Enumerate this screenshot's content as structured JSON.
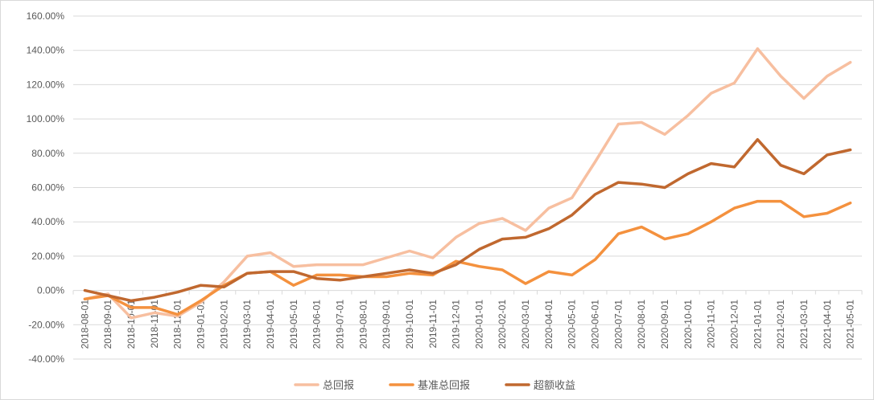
{
  "chart_data": {
    "type": "line",
    "title": "",
    "xlabel": "",
    "ylabel": "",
    "ylim": [
      -40,
      160
    ],
    "y_tick_step": 20,
    "y_tick_format": "percent_2dp",
    "grid": "horizontal",
    "legend_position": "bottom",
    "x": [
      "2018-08-01",
      "2018-09-01",
      "2018-10-01",
      "2018-11-01",
      "2018-12-01",
      "2019-01-01",
      "2019-02-01",
      "2019-03-01",
      "2019-04-01",
      "2019-05-01",
      "2019-06-01",
      "2019-07-01",
      "2019-08-01",
      "2019-09-01",
      "2019-10-01",
      "2019-11-01",
      "2019-12-01",
      "2020-01-01",
      "2020-02-01",
      "2020-03-01",
      "2020-04-01",
      "2020-05-01",
      "2020-06-01",
      "2020-07-01",
      "2020-08-01",
      "2020-09-01",
      "2020-10-01",
      "2020-11-01",
      "2020-12-01",
      "2021-01-01",
      "2021-02-01",
      "2021-03-01",
      "2021-04-01",
      "2021-05-01"
    ],
    "series": [
      {
        "name": "总回报",
        "color": "#f7bfa0",
        "values": [
          -5,
          -2,
          -16,
          -13,
          -15,
          -7,
          5,
          20,
          22,
          14,
          15,
          15,
          15,
          19,
          23,
          19,
          31,
          39,
          42,
          35,
          48,
          54,
          75,
          97,
          98,
          91,
          102,
          115,
          121,
          141,
          125,
          112,
          125,
          133
        ]
      },
      {
        "name": "基准总回报",
        "color": "#f4913e",
        "values": [
          -5,
          -3,
          -10,
          -10,
          -14,
          -6,
          3,
          10,
          11,
          3,
          9,
          9,
          8,
          8,
          10,
          9,
          17,
          14,
          12,
          4,
          11,
          9,
          18,
          33,
          37,
          30,
          33,
          40,
          48,
          52,
          52,
          43,
          45,
          51
        ]
      },
      {
        "name": "超额收益",
        "color": "#c0682f",
        "values": [
          0,
          -3,
          -6,
          -4,
          -1,
          3,
          2,
          10,
          11,
          11,
          7,
          6,
          8,
          10,
          12,
          10,
          15,
          24,
          30,
          31,
          36,
          44,
          56,
          63,
          62,
          60,
          68,
          74,
          72,
          88,
          73,
          68,
          79,
          82
        ]
      }
    ]
  }
}
